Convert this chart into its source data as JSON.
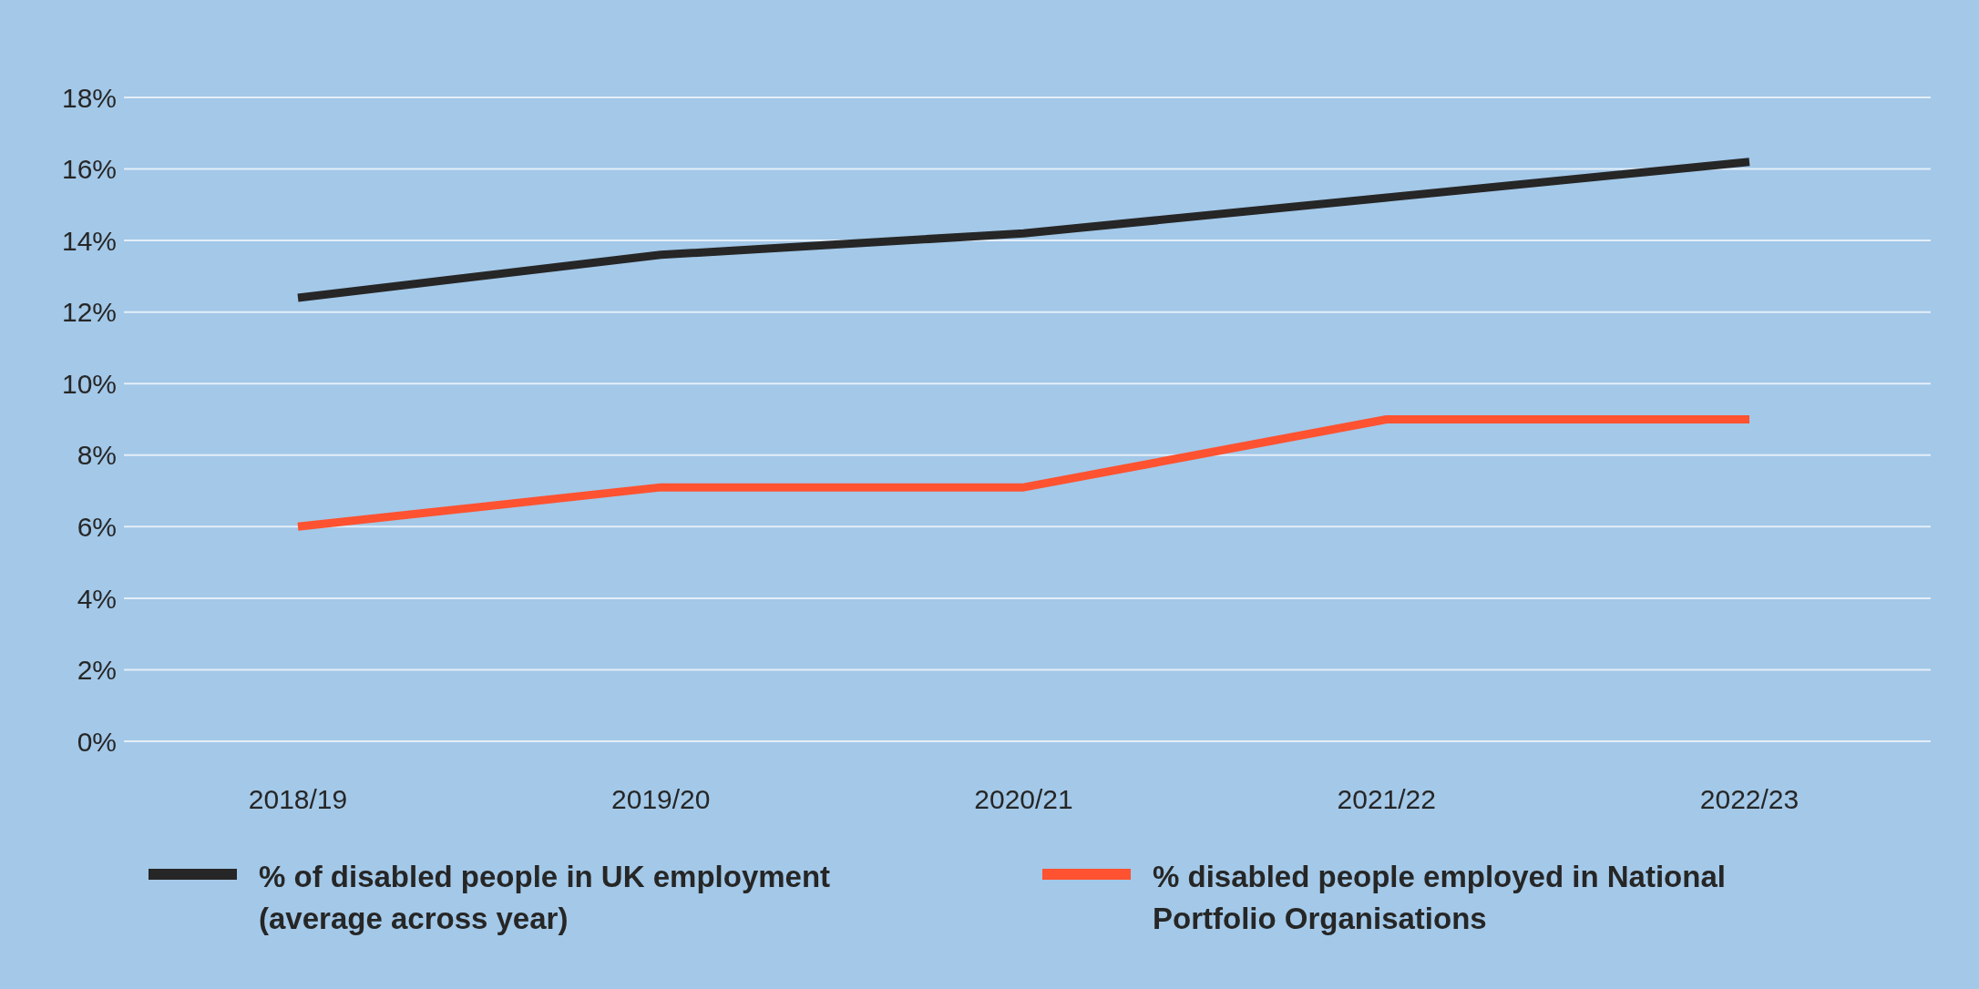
{
  "chart_data": {
    "type": "line",
    "categories": [
      "2018/19",
      "2019/20",
      "2020/21",
      "2021/22",
      "2022/23"
    ],
    "series": [
      {
        "name": "% of disabled people in UK employment (average across year)",
        "color": "#262626",
        "values": [
          12.4,
          13.6,
          14.2,
          15.2,
          16.2
        ]
      },
      {
        "name": "% disabled people employed in National Portfolio Organisations",
        "color": "#ff5230",
        "values": [
          6,
          7.1,
          7.1,
          9,
          9
        ]
      }
    ],
    "ylim": [
      0,
      18
    ],
    "yticks": [
      {
        "value": 0,
        "label": "0%"
      },
      {
        "value": 2,
        "label": "2%"
      },
      {
        "value": 4,
        "label": "4%"
      },
      {
        "value": 6,
        "label": "6%"
      },
      {
        "value": 8,
        "label": "8%"
      },
      {
        "value": 10,
        "label": "10%"
      },
      {
        "value": 12,
        "label": "12%"
      },
      {
        "value": 14,
        "label": "14%"
      },
      {
        "value": 16,
        "label": "16%"
      },
      {
        "value": 18,
        "label": "18%"
      }
    ],
    "grid": "y",
    "legend": "bottom",
    "marker": "none",
    "line_style": "solid"
  }
}
